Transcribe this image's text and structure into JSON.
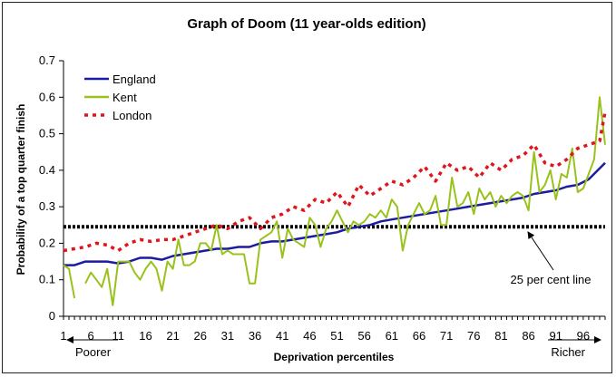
{
  "chart_data": {
    "type": "line",
    "title": "Graph of Doom (11 year-olds edition)",
    "xlabel": "Deprivation percentiles",
    "ylabel": "Probability of a top quarter finish",
    "xlim": [
      1,
      100
    ],
    "ylim": [
      0,
      0.7
    ],
    "yticks": [
      0,
      0.1,
      0.2,
      0.3,
      0.4,
      0.5,
      0.6,
      0.7
    ],
    "ytick_labels": [
      "0",
      "0.1",
      "0.2",
      "0.3",
      "0.4",
      "0.5",
      "0.6",
      "0.7"
    ],
    "xticks": [
      1,
      6,
      11,
      16,
      21,
      26,
      31,
      36,
      41,
      46,
      51,
      56,
      61,
      66,
      71,
      76,
      81,
      86,
      91,
      96
    ],
    "xtick_labels": [
      "1",
      "6",
      "11",
      "16",
      "21",
      "26",
      "31",
      "36",
      "41",
      "46",
      "51",
      "56",
      "61",
      "66",
      "71",
      "76",
      "81",
      "86",
      "91",
      "96"
    ],
    "legend_position": "top-left",
    "series": [
      {
        "name": "England",
        "color": "#1c1ca0",
        "style": "solid",
        "x": [
          1,
          3,
          5,
          7,
          9,
          11,
          13,
          15,
          17,
          19,
          21,
          23,
          25,
          27,
          29,
          31,
          33,
          35,
          37,
          39,
          41,
          43,
          45,
          47,
          49,
          51,
          53,
          55,
          57,
          59,
          61,
          63,
          65,
          67,
          69,
          71,
          73,
          75,
          77,
          79,
          81,
          83,
          85,
          87,
          89,
          91,
          93,
          95,
          97,
          99,
          100
        ],
        "y": [
          0.14,
          0.14,
          0.15,
          0.15,
          0.15,
          0.145,
          0.15,
          0.16,
          0.16,
          0.155,
          0.165,
          0.17,
          0.175,
          0.18,
          0.185,
          0.185,
          0.19,
          0.19,
          0.2,
          0.205,
          0.205,
          0.21,
          0.215,
          0.22,
          0.225,
          0.23,
          0.24,
          0.245,
          0.25,
          0.26,
          0.265,
          0.27,
          0.275,
          0.28,
          0.285,
          0.29,
          0.295,
          0.3,
          0.305,
          0.31,
          0.315,
          0.32,
          0.325,
          0.335,
          0.34,
          0.345,
          0.355,
          0.36,
          0.375,
          0.405,
          0.42
        ]
      },
      {
        "name": "Kent",
        "color": "#99c21c",
        "style": "solid",
        "x": [
          1,
          2,
          3,
          4,
          5,
          6,
          7,
          8,
          9,
          10,
          11,
          12,
          13,
          14,
          15,
          16,
          17,
          18,
          19,
          20,
          21,
          22,
          23,
          24,
          25,
          26,
          27,
          28,
          29,
          30,
          31,
          32,
          33,
          34,
          35,
          36,
          37,
          38,
          39,
          40,
          41,
          42,
          43,
          44,
          45,
          46,
          47,
          48,
          49,
          50,
          51,
          52,
          53,
          54,
          55,
          56,
          57,
          58,
          59,
          60,
          61,
          62,
          63,
          64,
          65,
          66,
          67,
          68,
          69,
          70,
          71,
          72,
          73,
          74,
          75,
          76,
          77,
          78,
          79,
          80,
          81,
          82,
          83,
          84,
          85,
          86,
          87,
          88,
          89,
          90,
          91,
          92,
          93,
          94,
          95,
          96,
          97,
          98,
          99,
          100
        ],
        "y": [
          0.14,
          0.13,
          0.05,
          null,
          0.09,
          0.12,
          0.1,
          0.08,
          0.13,
          0.03,
          0.15,
          0.15,
          0.15,
          0.12,
          0.1,
          0.13,
          0.15,
          0.13,
          0.07,
          0.15,
          0.13,
          0.21,
          0.14,
          0.14,
          0.15,
          0.2,
          0.2,
          0.18,
          0.25,
          0.17,
          0.18,
          0.17,
          0.17,
          0.17,
          0.09,
          0.09,
          0.21,
          0.22,
          0.23,
          0.26,
          0.16,
          0.24,
          0.21,
          0.2,
          0.19,
          0.27,
          0.25,
          0.19,
          0.24,
          0.26,
          0.29,
          0.26,
          0.23,
          0.26,
          0.25,
          0.26,
          0.28,
          0.27,
          0.29,
          0.27,
          0.32,
          0.3,
          0.18,
          0.25,
          0.28,
          0.31,
          0.28,
          0.29,
          0.33,
          0.25,
          0.25,
          0.38,
          0.3,
          0.31,
          0.34,
          0.28,
          0.35,
          0.32,
          0.34,
          0.3,
          0.33,
          0.31,
          0.33,
          0.34,
          0.33,
          0.29,
          0.45,
          0.34,
          0.36,
          0.4,
          0.32,
          0.39,
          0.38,
          0.46,
          0.34,
          0.35,
          0.39,
          0.43,
          0.6,
          0.47
        ]
      },
      {
        "name": "London",
        "color": "#e0161a",
        "style": "dotted",
        "x": [
          1,
          3,
          5,
          7,
          9,
          11,
          13,
          15,
          17,
          19,
          21,
          23,
          25,
          27,
          29,
          31,
          33,
          35,
          37,
          39,
          41,
          43,
          45,
          47,
          49,
          51,
          53,
          55,
          57,
          59,
          61,
          63,
          65,
          67,
          69,
          71,
          73,
          75,
          77,
          79,
          81,
          83,
          85,
          87,
          89,
          91,
          93,
          95,
          97,
          99,
          100
        ],
        "y": [
          0.18,
          0.185,
          0.19,
          0.2,
          0.195,
          0.18,
          0.2,
          0.21,
          0.205,
          0.21,
          0.21,
          0.22,
          0.23,
          0.24,
          0.25,
          0.24,
          0.26,
          0.27,
          0.24,
          0.27,
          0.28,
          0.3,
          0.29,
          0.32,
          0.31,
          0.34,
          0.3,
          0.36,
          0.33,
          0.35,
          0.37,
          0.36,
          0.38,
          0.41,
          0.37,
          0.42,
          0.4,
          0.41,
          0.38,
          0.42,
          0.4,
          0.43,
          0.44,
          0.47,
          0.42,
          0.41,
          0.43,
          0.46,
          0.47,
          0.48,
          0.56
        ]
      }
    ],
    "reference_line": {
      "y": 0.245,
      "label": "25 per cent line",
      "color": "#000000"
    },
    "annotations": {
      "left": "Poorer",
      "right": "Richer"
    }
  }
}
